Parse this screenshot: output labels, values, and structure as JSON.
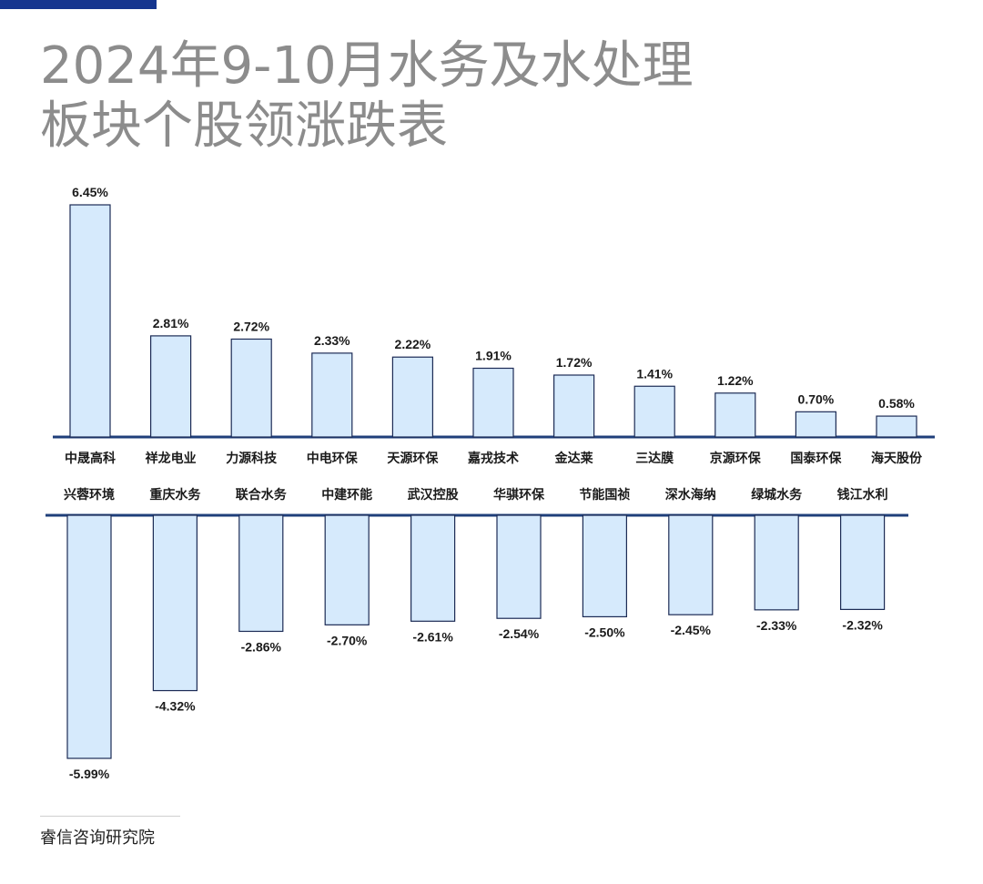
{
  "title_lines": [
    "2024年9-10月水务及水处理",
    "板块个股领涨跌表"
  ],
  "source": "睿信咨询研究院",
  "colors": {
    "accent": "#15358f",
    "bar_fill": "#d6eafc",
    "bar_stroke": "#1c2b55",
    "axis": "#1f3f7a"
  },
  "chart_data": [
    {
      "type": "bar",
      "title": "",
      "xlabel": "",
      "ylabel": "",
      "grid": false,
      "categories": [
        "中晟高科",
        "祥龙电业",
        "力源科技",
        "中电环保",
        "天源环保",
        "嘉戎技术",
        "金达莱",
        "三达膜",
        "京源环保",
        "国泰环保",
        "海天股份"
      ],
      "values": [
        6.45,
        2.81,
        2.72,
        2.33,
        2.22,
        1.91,
        1.72,
        1.41,
        1.22,
        0.7,
        0.58
      ],
      "value_labels": [
        "6.45%",
        "2.81%",
        "2.72%",
        "2.33%",
        "2.22%",
        "1.91%",
        "1.72%",
        "1.41%",
        "1.22%",
        "0.70%",
        "0.58%"
      ],
      "ylim": [
        0,
        6.45
      ]
    },
    {
      "type": "bar",
      "title": "",
      "xlabel": "",
      "ylabel": "",
      "grid": false,
      "categories": [
        "兴蓉环境",
        "重庆水务",
        "联合水务",
        "中建环能",
        "武汉控股",
        "华骐环保",
        "节能国祯",
        "深水海纳",
        "绿城水务",
        "钱江水利"
      ],
      "values": [
        -5.99,
        -4.32,
        -2.86,
        -2.7,
        -2.61,
        -2.54,
        -2.5,
        -2.45,
        -2.33,
        -2.32
      ],
      "value_labels": [
        "-5.99%",
        "-4.32%",
        "-2.86%",
        "-2.70%",
        "-2.61%",
        "-2.54%",
        "-2.50%",
        "-2.45%",
        "-2.33%",
        "-2.32%"
      ],
      "ylim": [
        -5.99,
        0
      ]
    }
  ]
}
